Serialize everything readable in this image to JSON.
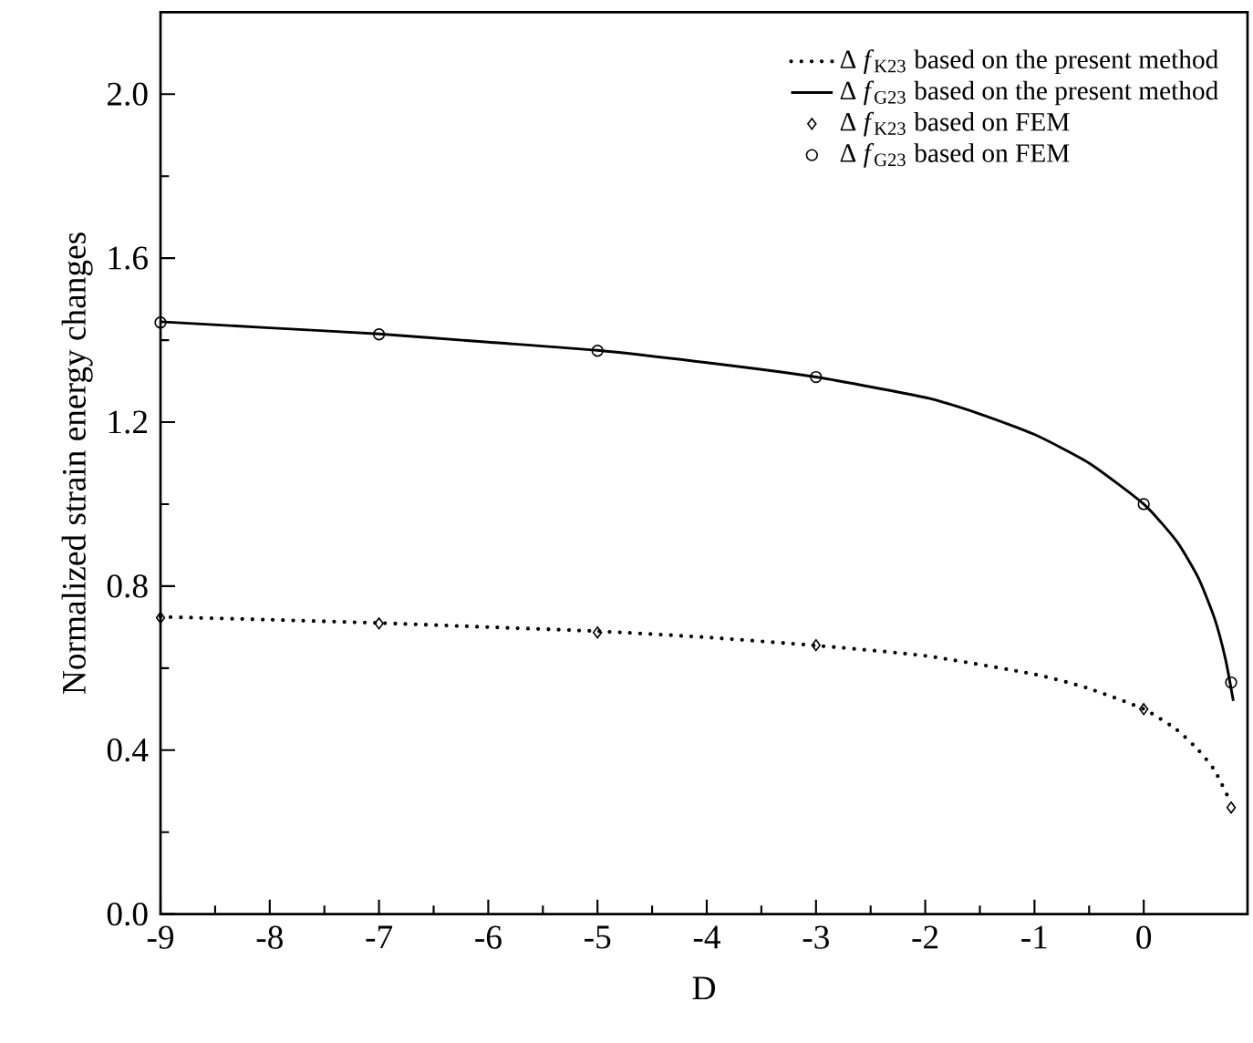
{
  "chart_data": {
    "type": "line",
    "xlabel": "D",
    "ylabel": "Normalized strain energy changes",
    "xlim": [
      -9,
      0.95
    ],
    "xticks": [
      -9,
      -8,
      -7,
      -6,
      -5,
      -4,
      -3,
      -2,
      -1,
      0
    ],
    "ylim": [
      0,
      2.2
    ],
    "yticks": [
      {
        "value": 0,
        "label": "0.0"
      },
      0.4,
      0.8,
      1.2,
      1.6,
      {
        "value": 2,
        "label": "2.0"
      }
    ],
    "legend": "top right",
    "grid": false,
    "series": [
      {
        "name": "Δ *f*$_{K23}$ based on the present method",
        "line_style": "dotted",
        "marker": "none",
        "color": "#000000",
        "x": [
          -9,
          -8,
          -7,
          -6,
          -5,
          -4,
          -3,
          -2,
          -1,
          -0.5,
          0,
          0.3,
          0.5,
          0.65,
          0.8
        ],
        "values": [
          0.725,
          0.718,
          0.71,
          0.7,
          0.69,
          0.675,
          0.655,
          0.63,
          0.585,
          0.55,
          0.5,
          0.45,
          0.4,
          0.35,
          0.27
        ]
      },
      {
        "name": "Δ *f*$_{G23}$ based on the present method",
        "line_style": "solid",
        "marker": "none",
        "color": "#000000",
        "x": [
          -9,
          -8,
          -7,
          -6,
          -5,
          -4,
          -3,
          -2,
          -1.5,
          -1,
          -0.5,
          0,
          0.3,
          0.5,
          0.65,
          0.75,
          0.82
        ],
        "values": [
          1.445,
          1.43,
          1.415,
          1.395,
          1.375,
          1.345,
          1.31,
          1.26,
          1.22,
          1.17,
          1.1,
          1.0,
          0.91,
          0.82,
          0.72,
          0.62,
          0.52
        ]
      },
      {
        "name": "Δ *f*$_{K23}$ based on FEM",
        "type": "scatter",
        "marker": "diamond",
        "color": "#000000",
        "x": [
          -9,
          -7,
          -5,
          -3,
          0,
          0.8
        ],
        "values": [
          0.723,
          0.709,
          0.687,
          0.656,
          0.5,
          0.26
        ]
      },
      {
        "name": "Δ *f*$_{G23}$ based on FEM",
        "type": "scatter",
        "marker": "circle",
        "color": "#000000",
        "x": [
          -9,
          -7,
          -5,
          -3,
          0,
          0.8
        ],
        "values": [
          1.443,
          1.414,
          1.374,
          1.31,
          1.0,
          0.565
        ]
      }
    ]
  }
}
